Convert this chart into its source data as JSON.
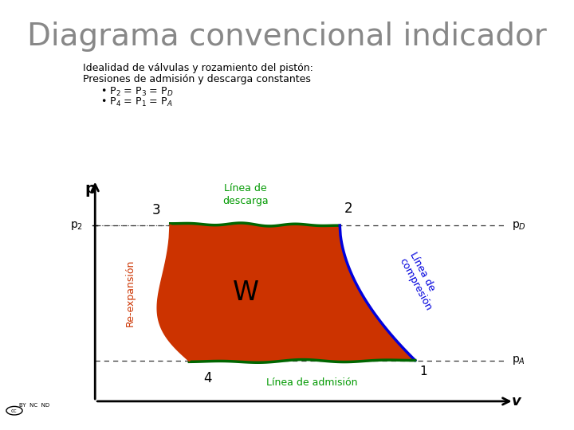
{
  "title": "Diagrama convencional indicador",
  "subtitle_line1": "Idealidad de válvulas y rozamiento del pistón:",
  "subtitle_line2": "Presiones de admisión y descarga constantes",
  "bullet1": "• P",
  "bullet1_sub": "2",
  "bullet1_rest": " = P",
  "bullet1_sub2": "3",
  "bullet1_rest2": " = P",
  "bullet1_sub3": "D",
  "bullet2": "• P",
  "bullet2_sub": "4",
  "bullet2_rest": " = P",
  "bullet2_sub2": "1",
  "bullet2_rest2": " = P",
  "bullet2_sub3": "A",
  "background_color": "#ffffff",
  "border_color": "#bbbbbb",
  "fill_color": "#cc3300",
  "discharge_line_color": "#006600",
  "admit_line_color": "#006600",
  "compression_line_color": "#0000dd",
  "axis_color": "#000000",
  "label_color_green": "#009900",
  "label_color_blue": "#0000dd",
  "label_color_orange": "#cc3300",
  "dashed_line_color": "#333333",
  "title_color": "#888888"
}
